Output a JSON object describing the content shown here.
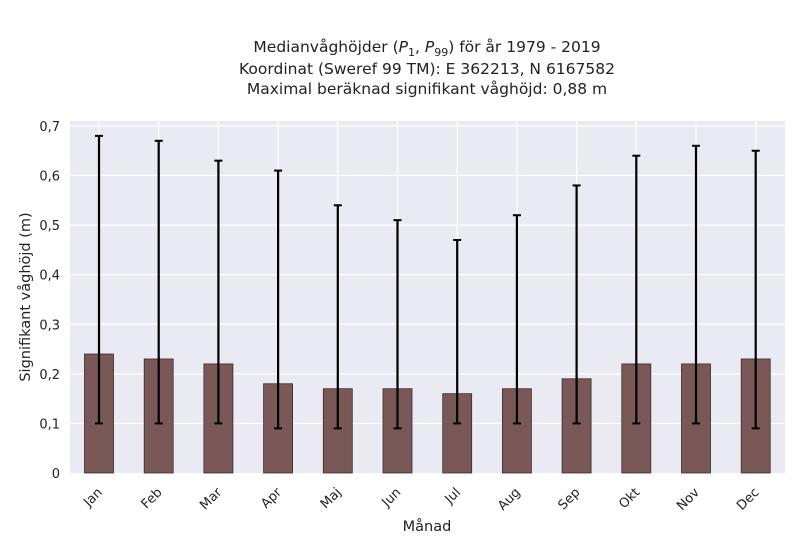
{
  "chart_data": {
    "type": "bar",
    "title_lines": [
      "Medianvåghöjder (P1, P99) för år 1979 - 2019",
      "Koordinat (Sweref 99 TM): E 362213, N 6167582",
      "Maximal beräknad signifikant våghöjd: 0,88 m"
    ],
    "xlabel": "Månad",
    "ylabel": "Signifikant våghöjd (m)",
    "categories": [
      "Jan",
      "Feb",
      "Mar",
      "Apr",
      "Maj",
      "Jun",
      "Jul",
      "Aug",
      "Sep",
      "Okt",
      "Nov",
      "Dec"
    ],
    "values": [
      0.24,
      0.23,
      0.22,
      0.18,
      0.17,
      0.17,
      0.16,
      0.17,
      0.19,
      0.22,
      0.22,
      0.23
    ],
    "p1": [
      0.1,
      0.1,
      0.1,
      0.09,
      0.09,
      0.09,
      0.1,
      0.1,
      0.1,
      0.1,
      0.1,
      0.09
    ],
    "p99": [
      0.68,
      0.67,
      0.63,
      0.61,
      0.54,
      0.51,
      0.47,
      0.52,
      0.58,
      0.64,
      0.66,
      0.65
    ],
    "ylim": [
      0,
      0.71
    ],
    "yticks": [
      0,
      0.1,
      0.2,
      0.3,
      0.4,
      0.5,
      0.6,
      0.7
    ],
    "ytick_labels": [
      "0",
      "0,1",
      "0,2",
      "0,3",
      "0,4",
      "0,5",
      "0,6",
      "0,7"
    ],
    "grid": true,
    "colors": {
      "bar": "#7b5858",
      "bar_edge": "#3a2a2a",
      "error_bar": "#000000",
      "plot_background": "#eaeaf2",
      "grid": "#ffffff"
    }
  }
}
